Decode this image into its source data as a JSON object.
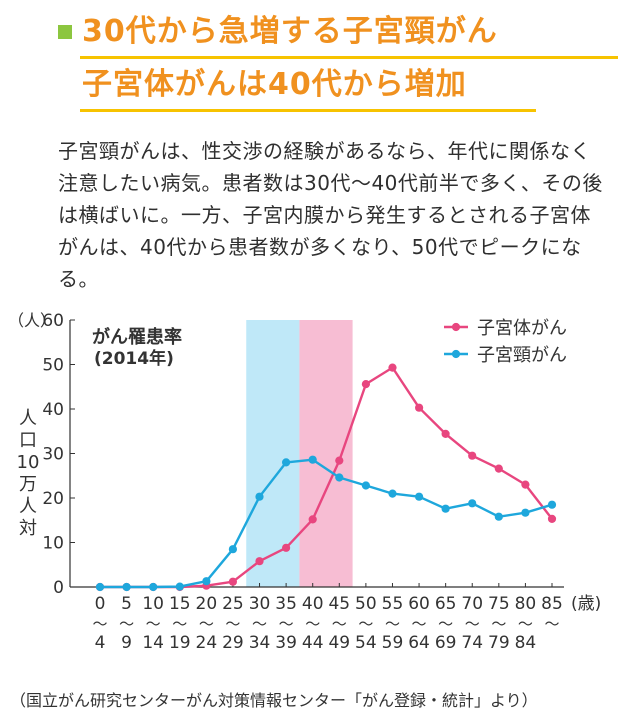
{
  "headline": {
    "line1": "30代から急増する子宮頸がん",
    "line2": "子宮体がんは40代から増加"
  },
  "intro": "子宮頸がんは、性交渉の経験があるなら、年代に関係なく注意したい病気。患者数は30代～40代前半で多く、その後は横ばいに。一方、子宮内膜から発生するとされる子宮体がんは、40代から患者数が多くなり、50代でピークになる。",
  "source": "（国立がん研究センターがん対策情報センター「がん登録・統計」より）",
  "colors": {
    "headline": "#f0911f",
    "accent_square": "#8cc63f",
    "rule": "#f7c300",
    "uterine_body": "#e8467f",
    "cervical": "#1ea7dc",
    "blue_band": "#bfe8f8",
    "pink_band": "#f7bdd3"
  },
  "chart_data": {
    "type": "line",
    "title": "がん罹患率",
    "subtitle": "(2014年)",
    "ylabel": "人口10万人対",
    "yunit": "（人）",
    "xunit": "(歳)",
    "ylim": [
      0,
      60
    ],
    "yticks": [
      0,
      10,
      20,
      30,
      40,
      50,
      60
    ],
    "categories": [
      "0～4",
      "5～9",
      "10～14",
      "15～19",
      "20～24",
      "25～29",
      "30～34",
      "35～39",
      "40～44",
      "45～49",
      "50～54",
      "55～59",
      "60～64",
      "65～69",
      "70～74",
      "75～79",
      "80～84",
      "85～"
    ],
    "category_tick_labels": [
      "0",
      "5",
      "10",
      "15",
      "20",
      "25",
      "30",
      "35",
      "40",
      "45",
      "50",
      "55",
      "60",
      "65",
      "70",
      "75",
      "80",
      "85"
    ],
    "category_end_labels": [
      "4",
      "9",
      "14",
      "19",
      "24",
      "29",
      "34",
      "39",
      "44",
      "49",
      "54",
      "59",
      "64",
      "69",
      "74",
      "79",
      "84",
      ""
    ],
    "series": [
      {
        "name": "子宮体がん",
        "color": "#e8467f",
        "values": [
          0,
          0,
          0,
          0,
          0.3,
          1.2,
          5.8,
          8.8,
          15.2,
          28.4,
          45.6,
          49.3,
          40.3,
          34.4,
          29.5,
          26.6,
          23.0,
          15.3
        ]
      },
      {
        "name": "子宮頸がん",
        "color": "#1ea7dc",
        "values": [
          0,
          0,
          0,
          0.1,
          1.3,
          8.5,
          20.3,
          28.0,
          28.6,
          24.6,
          22.8,
          21.0,
          20.3,
          17.6,
          18.8,
          15.8,
          16.7,
          18.5
        ]
      }
    ],
    "highlight_bands": [
      {
        "from_index": 6,
        "to_index": 8,
        "color": "#bfe8f8"
      },
      {
        "from_index": 8,
        "to_index": 10,
        "color": "#f7bdd3"
      }
    ],
    "legend_position": "top-right",
    "grid": false
  }
}
